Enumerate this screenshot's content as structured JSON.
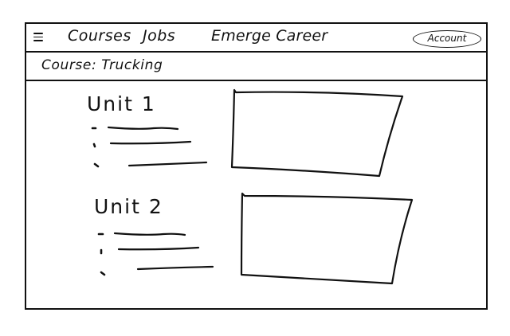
{
  "nav": {
    "menu_icon": "hamburger-menu-icon",
    "links": [
      "Courses",
      "Jobs"
    ],
    "brand": "Emerge Career",
    "account_label": "Account"
  },
  "course": {
    "title": "Course: Trucking"
  },
  "units": [
    {
      "title": "Unit 1"
    },
    {
      "title": "Unit 2"
    }
  ]
}
